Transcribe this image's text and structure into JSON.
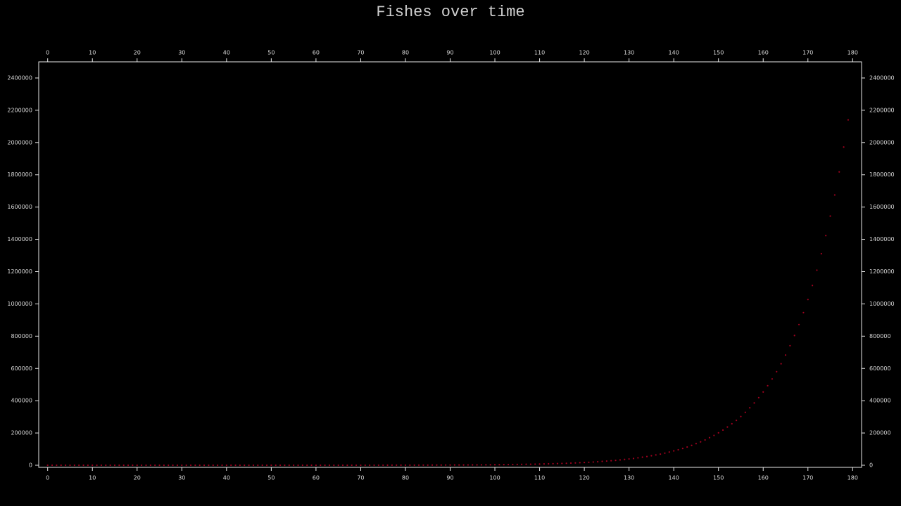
{
  "chart_data": {
    "type": "scatter",
    "title": "Fishes over time",
    "color": "#a0001e",
    "x": [
      0,
      1,
      2,
      3,
      4,
      5,
      6,
      7,
      8,
      9,
      10,
      11,
      12,
      13,
      14,
      15,
      16,
      17,
      18,
      19,
      20,
      21,
      22,
      23,
      24,
      25,
      26,
      27,
      28,
      29,
      30,
      31,
      32,
      33,
      34,
      35,
      36,
      37,
      38,
      39,
      40,
      41,
      42,
      43,
      44,
      45,
      46,
      47,
      48,
      49,
      50,
      51,
      52,
      53,
      54,
      55,
      56,
      57,
      58,
      59,
      60,
      61,
      62,
      63,
      64,
      65,
      66,
      67,
      68,
      69,
      70,
      71,
      72,
      73,
      74,
      75,
      76,
      77,
      78,
      79,
      80,
      81,
      82,
      83,
      84,
      85,
      86,
      87,
      88,
      89,
      90,
      91,
      92,
      93,
      94,
      95,
      96,
      97,
      98,
      99,
      100,
      101,
      102,
      103,
      104,
      105,
      106,
      107,
      108,
      109,
      110,
      111,
      112,
      113,
      114,
      115,
      116,
      117,
      118,
      119,
      120,
      121,
      122,
      123,
      124,
      125,
      126,
      127,
      128,
      129,
      130,
      131,
      132,
      133,
      134,
      135,
      136,
      137,
      138,
      139,
      140,
      141,
      142,
      143,
      144,
      145,
      146,
      147,
      148,
      149,
      150,
      151,
      152,
      153,
      154,
      155,
      156,
      157,
      158,
      159,
      160,
      161,
      162,
      163,
      164,
      165,
      166,
      167,
      168,
      169,
      170,
      171,
      172,
      173,
      174,
      175,
      176,
      177,
      178,
      179
    ],
    "values": [
      1,
      1,
      1,
      1,
      1,
      1,
      1,
      1,
      2,
      2,
      2,
      2,
      2,
      2,
      3,
      3,
      3,
      3,
      4,
      4,
      4,
      5,
      5,
      6,
      6,
      7,
      8,
      8,
      9,
      10,
      11,
      12,
      13,
      14,
      15,
      16,
      17,
      19,
      20,
      22,
      24,
      26,
      28,
      31,
      34,
      37,
      40,
      43,
      47,
      51,
      55,
      60,
      65,
      70,
      76,
      83,
      90,
      98,
      106,
      115,
      125,
      135,
      147,
      159,
      173,
      187,
      203,
      221,
      240,
      260,
      282,
      306,
      332,
      360,
      390,
      425,
      460,
      500,
      540,
      590,
      640,
      690,
      750,
      820,
      890,
      960,
      1040,
      1130,
      1230,
      1330,
      1450,
      1570,
      1700,
      1850,
      2000,
      2200,
      2400,
      2600,
      2800,
      3000,
      3300,
      3600,
      3900,
      4200,
      4600,
      5000,
      5400,
      5900,
      6400,
      6900,
      7500,
      8100,
      8800,
      9600,
      10400,
      11300,
      12200,
      13300,
      14400,
      15700,
      17000,
      18400,
      20000,
      22000,
      24000,
      26000,
      28000,
      30000,
      33000,
      36000,
      39000,
      42000,
      46000,
      50000,
      54000,
      59000,
      64000,
      69000,
      75000,
      82000,
      89000,
      96000,
      104000,
      113000,
      123000,
      134000,
      145000,
      157000,
      171000,
      185000,
      201000,
      218000,
      237000,
      257000,
      278000,
      302000,
      328000,
      356000,
      386000,
      419000,
      454000,
      493000,
      535000,
      580000,
      629000,
      683000,
      741000,
      804000,
      872000,
      946000,
      1027000,
      1114000,
      1209000,
      1311000,
      1423000,
      1544000,
      1675000,
      1818000,
      1972000,
      2140000
    ],
    "xlim": [
      -2,
      182
    ],
    "xticks": [
      0,
      10,
      20,
      30,
      40,
      50,
      60,
      70,
      80,
      90,
      100,
      110,
      120,
      130,
      140,
      150,
      160,
      170,
      180
    ],
    "ylim": [
      -13000,
      2500000
    ],
    "yticks": [
      0,
      200000,
      400000,
      600000,
      800000,
      1000000,
      1200000,
      1400000,
      1600000,
      1800000,
      2000000,
      2200000,
      2400000
    ]
  }
}
